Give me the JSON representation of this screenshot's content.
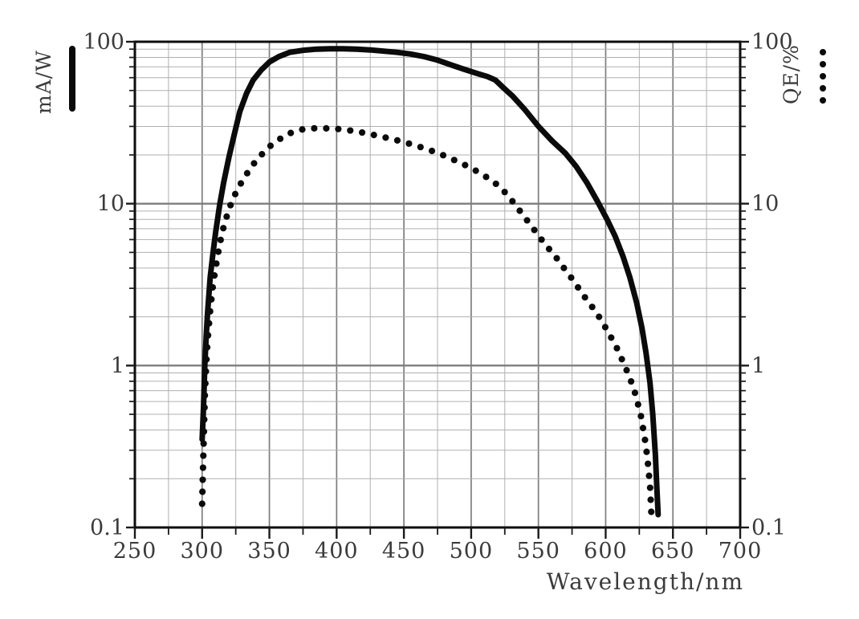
{
  "figure": {
    "background": "#ffffff",
    "frame_color": "#0d0d0d",
    "grid_minor_color": "#b0b0b0",
    "grid_major_color": "#7d7d7d",
    "curve_color": "#0b0b0b",
    "label_color": "#3b3b3b",
    "x_axis": {
      "title": "Wavelength/nm",
      "min": 250,
      "max": 700,
      "major_step": 50,
      "minor_step": 25,
      "tick_values": [
        250,
        300,
        350,
        400,
        450,
        500,
        550,
        600,
        650,
        700
      ],
      "tick_labels": [
        "250",
        "300",
        "350",
        "400",
        "450",
        "500",
        "550",
        "600",
        "650",
        "700"
      ]
    },
    "y_axis_left": {
      "label": "mA/W",
      "scale": "log",
      "min": 0.1,
      "max": 100,
      "tick_values": [
        100,
        10,
        1,
        0.1
      ],
      "tick_labels": [
        "100",
        "10",
        "1",
        "0.1"
      ]
    },
    "y_axis_right": {
      "label": "QE/%",
      "scale": "log",
      "min": 0.1,
      "max": 100,
      "tick_values": [
        100,
        10,
        1,
        0.1
      ],
      "tick_labels": [
        "100",
        "10",
        "1",
        "0.1"
      ]
    },
    "legend": [
      {
        "label": "mA/W",
        "marker": "solid-line"
      },
      {
        "label": "QE/%",
        "marker": "dotted-line"
      }
    ]
  },
  "chart_data": {
    "type": "line",
    "title": "",
    "xlabel": "Wavelength/nm",
    "ylabel_left": "mA/W",
    "ylabel_right": "QE/%",
    "x_range": [
      250,
      700
    ],
    "y_range": [
      0.1,
      100
    ],
    "y_scale": "log",
    "grid": true,
    "legend_position": "outside-top-corners",
    "series": [
      {
        "name": "mA/W",
        "style": "solid",
        "axis": "left",
        "points": [
          [
            300,
            0.35
          ],
          [
            301,
            0.55
          ],
          [
            302,
            1.0
          ],
          [
            303,
            1.5
          ],
          [
            304,
            2.1
          ],
          [
            306,
            3.5
          ],
          [
            308,
            4.9
          ],
          [
            310,
            6.6
          ],
          [
            313,
            9.8
          ],
          [
            316,
            13.5
          ],
          [
            320,
            19.5
          ],
          [
            324,
            27
          ],
          [
            328,
            37
          ],
          [
            333,
            48
          ],
          [
            338,
            58
          ],
          [
            344,
            67
          ],
          [
            350,
            75
          ],
          [
            357,
            81
          ],
          [
            365,
            86
          ],
          [
            375,
            88.5
          ],
          [
            385,
            90
          ],
          [
            395,
            90.5
          ],
          [
            405,
            90.5
          ],
          [
            415,
            90
          ],
          [
            425,
            89
          ],
          [
            435,
            87.5
          ],
          [
            445,
            86
          ],
          [
            455,
            84
          ],
          [
            465,
            81
          ],
          [
            475,
            77
          ],
          [
            485,
            72
          ],
          [
            495,
            67.5
          ],
          [
            505,
            63.5
          ],
          [
            512,
            61
          ],
          [
            518,
            58
          ],
          [
            524,
            52
          ],
          [
            531,
            46
          ],
          [
            540,
            38
          ],
          [
            550,
            30
          ],
          [
            560,
            24.5
          ],
          [
            570,
            20.5
          ],
          [
            578,
            17
          ],
          [
            586,
            13.5
          ],
          [
            594,
            10.3
          ],
          [
            601,
            8.0
          ],
          [
            607,
            6.3
          ],
          [
            613,
            4.7
          ],
          [
            618,
            3.5
          ],
          [
            623,
            2.45
          ],
          [
            627,
            1.7
          ],
          [
            630,
            1.2
          ],
          [
            633,
            0.78
          ],
          [
            635,
            0.5
          ],
          [
            637,
            0.28
          ],
          [
            638,
            0.18
          ],
          [
            639,
            0.12
          ]
        ]
      },
      {
        "name": "QE/%",
        "style": "dotted",
        "axis": "right",
        "points": [
          [
            300,
            0.14
          ],
          [
            301,
            0.3
          ],
          [
            302,
            0.65
          ],
          [
            303,
            1.0
          ],
          [
            304,
            1.4
          ],
          [
            306,
            2.2
          ],
          [
            308,
            3.1
          ],
          [
            310,
            4.0
          ],
          [
            313,
            5.6
          ],
          [
            316,
            7.2
          ],
          [
            320,
            9.3
          ],
          [
            324,
            11.2
          ],
          [
            328,
            13.0
          ],
          [
            333,
            15.2
          ],
          [
            338,
            17.5
          ],
          [
            344,
            20.0
          ],
          [
            350,
            22.5
          ],
          [
            356,
            24.5
          ],
          [
            362,
            26.5
          ],
          [
            368,
            27.8
          ],
          [
            375,
            28.8
          ],
          [
            383,
            29.2
          ],
          [
            391,
            29.2
          ],
          [
            400,
            29.0
          ],
          [
            410,
            28.3
          ],
          [
            420,
            27.4
          ],
          [
            430,
            26.3
          ],
          [
            440,
            25.2
          ],
          [
            450,
            24.0
          ],
          [
            460,
            22.7
          ],
          [
            470,
            21.3
          ],
          [
            480,
            19.8
          ],
          [
            490,
            18.2
          ],
          [
            500,
            16.6
          ],
          [
            508,
            15.2
          ],
          [
            516,
            13.8
          ],
          [
            523,
            12.3
          ],
          [
            529,
            10.8
          ],
          [
            535,
            9.3
          ],
          [
            541,
            8.0
          ],
          [
            548,
            6.7
          ],
          [
            555,
            5.6
          ],
          [
            562,
            4.8
          ],
          [
            569,
            4.0
          ],
          [
            576,
            3.35
          ],
          [
            583,
            2.75
          ],
          [
            590,
            2.3
          ],
          [
            596,
            1.95
          ],
          [
            602,
            1.6
          ],
          [
            608,
            1.3
          ],
          [
            613,
            1.05
          ],
          [
            618,
            0.84
          ],
          [
            622,
            0.67
          ],
          [
            626,
            0.5
          ],
          [
            629,
            0.36
          ],
          [
            631,
            0.27
          ],
          [
            633,
            0.18
          ],
          [
            634,
            0.12
          ]
        ]
      }
    ]
  }
}
